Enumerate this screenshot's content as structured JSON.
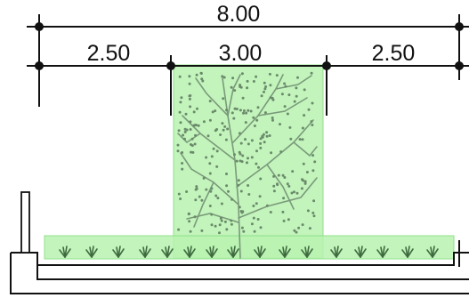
{
  "dimensions": {
    "overall": "8.00",
    "left_bay": "2.50",
    "center_bay": "3.00",
    "right_bay": "2.50"
  },
  "colors": {
    "line": "#111111",
    "highlight_fill": "#b9f2b0",
    "highlight_stroke": "#7fd87a",
    "tree": "#7a9a7a",
    "grass": "#3f6b3f"
  },
  "icons": {
    "tree": "tree-elevation-icon",
    "grass": "grass-tuft-icon"
  }
}
